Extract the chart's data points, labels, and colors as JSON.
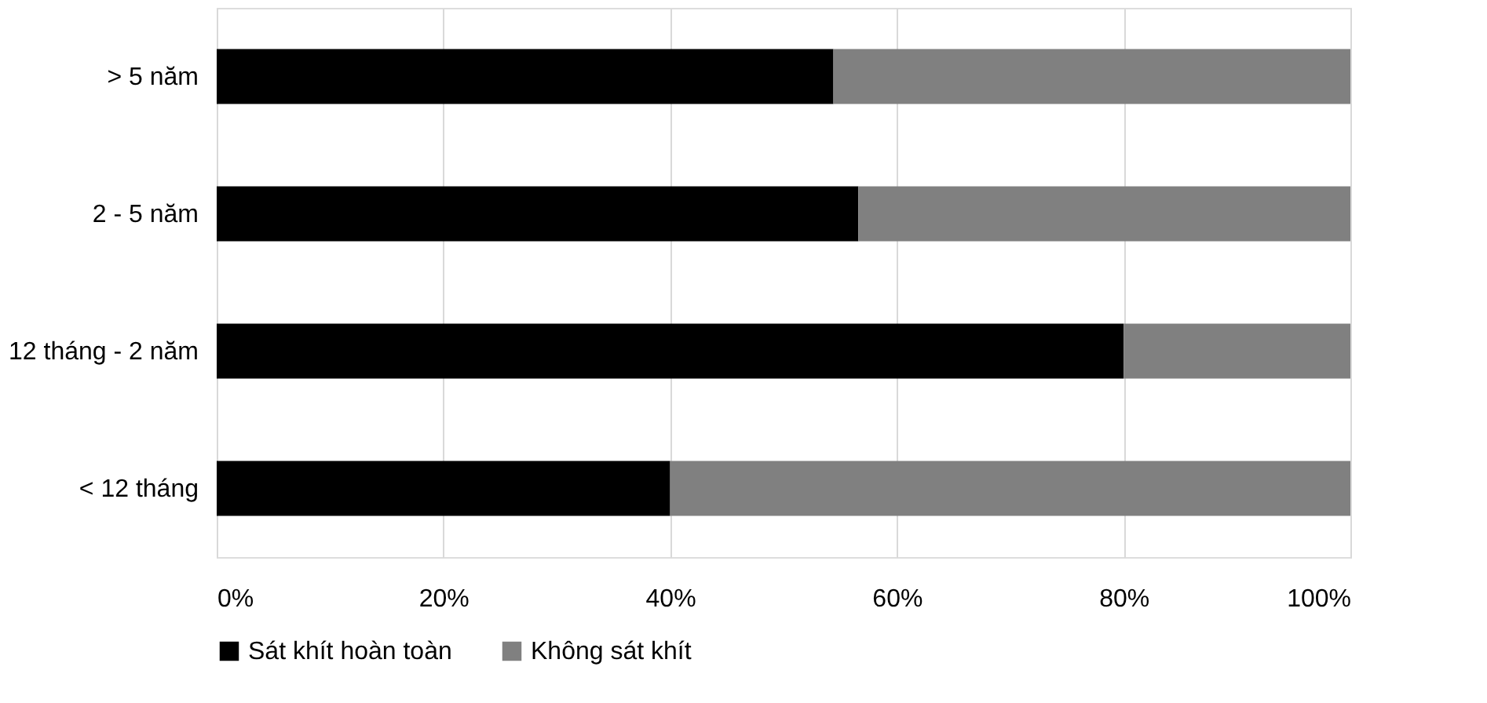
{
  "chart_data": {
    "type": "bar",
    "orientation": "horizontal",
    "stacked": true,
    "categories": [
      "> 5 năm",
      "2 - 5 năm",
      "12 tháng - 2 năm",
      "< 12 tháng"
    ],
    "series": [
      {
        "name": "Sát khít hoàn toàn",
        "color": "#000000",
        "values": [
          54.4,
          56.6,
          80.0,
          40.0
        ]
      },
      {
        "name": "Không sát khít",
        "color": "#808080",
        "values": [
          45.6,
          43.4,
          20.0,
          60.0
        ]
      }
    ],
    "xlim": [
      0,
      100
    ],
    "xticks": [
      {
        "value": 0,
        "label": "0%"
      },
      {
        "value": 20,
        "label": "20%"
      },
      {
        "value": 40,
        "label": "40%"
      },
      {
        "value": 60,
        "label": "60%"
      },
      {
        "value": 80,
        "label": "80%"
      },
      {
        "value": 100,
        "label": "100%"
      }
    ],
    "grid": "x",
    "legend": "bottom"
  }
}
